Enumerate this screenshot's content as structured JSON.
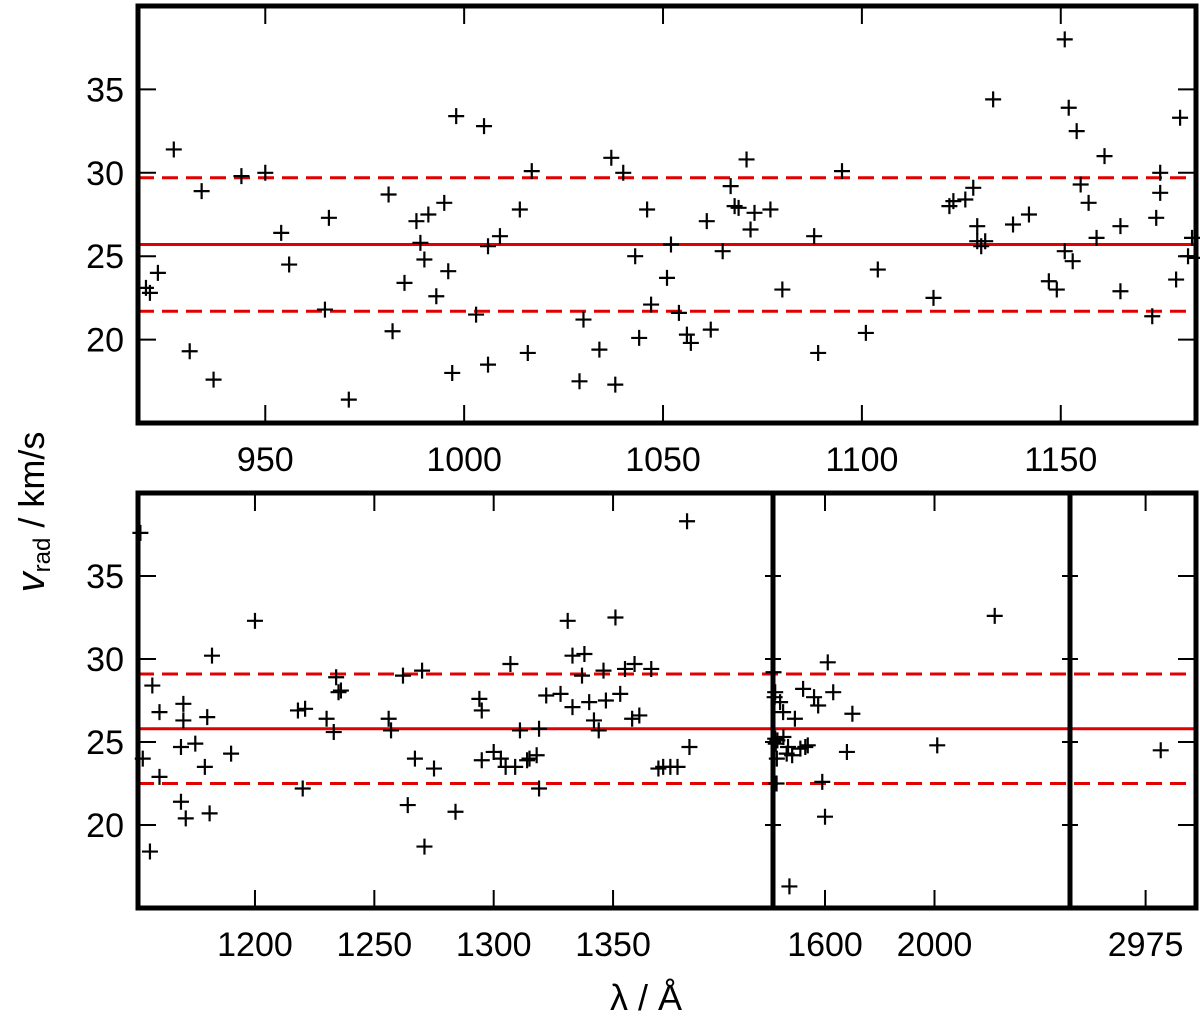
{
  "colors": {
    "line": "#e00000",
    "marker": "#000000",
    "axis": "#000000"
  },
  "chart_data": [
    {
      "type": "scatter",
      "panel": "top",
      "title": "",
      "xlabel": "",
      "ylabel": "v_rad / km/s",
      "ylabel_parts": {
        "symbol": "v",
        "subscript": "rad",
        "unit": " / km/s"
      },
      "xlim": [
        918,
        1184
      ],
      "ylim": [
        15,
        40
      ],
      "xticks": [
        950,
        1000,
        1050,
        1100,
        1150
      ],
      "yticks": [
        20,
        25,
        30,
        35
      ],
      "mean": 25.7,
      "band": [
        21.7,
        29.7
      ],
      "points": [
        [
          920,
          23.1
        ],
        [
          921,
          22.8
        ],
        [
          923,
          24.0
        ],
        [
          927,
          31.4
        ],
        [
          931,
          19.3
        ],
        [
          934,
          28.9
        ],
        [
          937,
          17.6
        ],
        [
          944,
          29.8
        ],
        [
          950,
          30.0
        ],
        [
          954,
          26.4
        ],
        [
          956,
          24.5
        ],
        [
          965,
          21.8
        ],
        [
          966,
          27.3
        ],
        [
          971,
          16.4
        ],
        [
          981,
          28.7
        ],
        [
          982,
          20.5
        ],
        [
          985,
          23.4
        ],
        [
          988,
          27.1
        ],
        [
          989,
          25.8
        ],
        [
          990,
          24.8
        ],
        [
          991,
          27.5
        ],
        [
          993,
          22.6
        ],
        [
          995,
          28.2
        ],
        [
          996,
          24.1
        ],
        [
          997,
          18.0
        ],
        [
          998,
          33.4
        ],
        [
          1003,
          21.5
        ],
        [
          1005,
          32.8
        ],
        [
          1006,
          18.5
        ],
        [
          1006,
          25.6
        ],
        [
          1009,
          26.2
        ],
        [
          1014,
          27.8
        ],
        [
          1016,
          19.2
        ],
        [
          1017,
          30.1
        ],
        [
          1029,
          17.5
        ],
        [
          1030,
          21.2
        ],
        [
          1034,
          19.4
        ],
        [
          1037,
          30.9
        ],
        [
          1038,
          17.3
        ],
        [
          1040,
          30.0
        ],
        [
          1043,
          25.0
        ],
        [
          1044,
          20.1
        ],
        [
          1046,
          27.8
        ],
        [
          1047,
          22.1
        ],
        [
          1051,
          23.7
        ],
        [
          1052,
          25.7
        ],
        [
          1054,
          21.6
        ],
        [
          1056,
          20.3
        ],
        [
          1057,
          19.8
        ],
        [
          1061,
          27.1
        ],
        [
          1062,
          20.6
        ],
        [
          1065,
          25.3
        ],
        [
          1067,
          29.2
        ],
        [
          1068,
          28.0
        ],
        [
          1069,
          27.9
        ],
        [
          1071,
          30.8
        ],
        [
          1072,
          26.6
        ],
        [
          1073,
          27.6
        ],
        [
          1077,
          27.8
        ],
        [
          1080,
          23.0
        ],
        [
          1088,
          26.2
        ],
        [
          1089,
          19.2
        ],
        [
          1095,
          30.1
        ],
        [
          1101,
          20.4
        ],
        [
          1104,
          24.2
        ],
        [
          1118,
          22.5
        ],
        [
          1122,
          28.0
        ],
        [
          1123,
          28.3
        ],
        [
          1126,
          28.4
        ],
        [
          1128,
          29.1
        ],
        [
          1129,
          26.8
        ],
        [
          1129,
          25.9
        ],
        [
          1130,
          25.6
        ],
        [
          1131,
          25.9
        ],
        [
          1133,
          34.4
        ],
        [
          1138,
          26.9
        ],
        [
          1142,
          27.5
        ],
        [
          1147,
          23.5
        ],
        [
          1149,
          23.0
        ],
        [
          1151,
          38.0
        ],
        [
          1151,
          25.3
        ],
        [
          1152,
          33.9
        ],
        [
          1153,
          24.7
        ],
        [
          1154,
          32.5
        ],
        [
          1155,
          29.3
        ],
        [
          1157,
          28.2
        ],
        [
          1159,
          26.1
        ],
        [
          1161,
          31.0
        ],
        [
          1165,
          26.8
        ],
        [
          1165,
          22.9
        ],
        [
          1173,
          21.4
        ],
        [
          1174,
          27.3
        ],
        [
          1175,
          30.0
        ],
        [
          1175,
          28.8
        ],
        [
          1179,
          23.6
        ],
        [
          1180,
          33.3
        ],
        [
          1182,
          25.0
        ],
        [
          1183,
          26.1
        ],
        [
          1184,
          24.9
        ]
      ]
    },
    {
      "type": "scatter",
      "panel": "bottom",
      "title": "",
      "xlabel": "λ / Å",
      "ylabel": "",
      "ylim": [
        15,
        40
      ],
      "mean": 25.8,
      "band": [
        22.5,
        29.1
      ],
      "segments": [
        {
          "xlim": [
            1151,
            1417
          ],
          "xticks": [
            1200,
            1250,
            1300,
            1350
          ],
          "points": [
            [
              1152,
              37.6
            ],
            [
              1153,
              24.0
            ],
            [
              1156,
              18.4
            ],
            [
              1157,
              28.4
            ],
            [
              1160,
              22.9
            ],
            [
              1160,
              26.8
            ],
            [
              1169,
              21.4
            ],
            [
              1169,
              24.7
            ],
            [
              1170,
              27.3
            ],
            [
              1170,
              26.3
            ],
            [
              1171,
              20.4
            ],
            [
              1175,
              24.9
            ],
            [
              1179,
              23.5
            ],
            [
              1180,
              26.5
            ],
            [
              1181,
              20.7
            ],
            [
              1182,
              30.2
            ],
            [
              1190,
              24.3
            ],
            [
              1200,
              32.3
            ],
            [
              1218,
              26.9
            ],
            [
              1220,
              22.2
            ],
            [
              1221,
              27.0
            ],
            [
              1230,
              26.4
            ],
            [
              1233,
              25.6
            ],
            [
              1234,
              28.9
            ],
            [
              1235,
              28.0
            ],
            [
              1236,
              28.1
            ],
            [
              1256,
              26.4
            ],
            [
              1257,
              25.7
            ],
            [
              1262,
              29.0
            ],
            [
              1264,
              21.2
            ],
            [
              1267,
              24.0
            ],
            [
              1270,
              29.3
            ],
            [
              1271,
              18.7
            ],
            [
              1275,
              23.4
            ],
            [
              1284,
              20.8
            ],
            [
              1294,
              27.6
            ],
            [
              1295,
              23.9
            ],
            [
              1295,
              26.9
            ],
            [
              1300,
              24.4
            ],
            [
              1303,
              24.0
            ],
            [
              1305,
              23.5
            ],
            [
              1307,
              29.7
            ],
            [
              1309,
              23.5
            ],
            [
              1311,
              25.7
            ],
            [
              1314,
              23.9
            ],
            [
              1315,
              24.0
            ],
            [
              1318,
              24.2
            ],
            [
              1319,
              22.2
            ],
            [
              1319,
              25.8
            ],
            [
              1322,
              27.8
            ],
            [
              1328,
              27.9
            ],
            [
              1331,
              32.3
            ],
            [
              1333,
              30.2
            ],
            [
              1333,
              27.1
            ],
            [
              1337,
              29.0
            ],
            [
              1338,
              30.3
            ],
            [
              1340,
              27.4
            ],
            [
              1342,
              26.3
            ],
            [
              1344,
              25.7
            ],
            [
              1346,
              29.3
            ],
            [
              1347,
              27.5
            ],
            [
              1351,
              32.5
            ],
            [
              1353,
              27.9
            ],
            [
              1355,
              29.4
            ],
            [
              1358,
              26.4
            ],
            [
              1359,
              29.7
            ],
            [
              1361,
              26.6
            ],
            [
              1366,
              29.4
            ],
            [
              1369,
              23.4
            ],
            [
              1371,
              23.5
            ],
            [
              1374,
              23.5
            ],
            [
              1377,
              23.5
            ],
            [
              1381,
              38.3
            ],
            [
              1382,
              24.7
            ]
          ]
        },
        {
          "xlim": [
            1410,
            2495
          ],
          "xticks": [
            1600,
            2000
          ],
          "points": [
            [
              1412,
              29.2
            ],
            [
              1416,
              27.7
            ],
            [
              1418,
              28.0
            ],
            [
              1418,
              25.2
            ],
            [
              1420,
              24.9
            ],
            [
              1423,
              22.5
            ],
            [
              1424,
              24.0
            ],
            [
              1426,
              25.1
            ],
            [
              1436,
              27.4
            ],
            [
              1447,
              26.8
            ],
            [
              1448,
              25.3
            ],
            [
              1460,
              24.3
            ],
            [
              1465,
              24.7
            ],
            [
              1470,
              16.3
            ],
            [
              1480,
              24.2
            ],
            [
              1490,
              26.4
            ],
            [
              1510,
              24.6
            ],
            [
              1520,
              28.2
            ],
            [
              1528,
              24.7
            ],
            [
              1537,
              24.8
            ],
            [
              1560,
              27.7
            ],
            [
              1575,
              27.2
            ],
            [
              1590,
              22.6
            ],
            [
              1600,
              20.5
            ],
            [
              1610,
              29.8
            ],
            [
              1630,
              28.0
            ],
            [
              1680,
              24.4
            ],
            [
              1700,
              26.7
            ],
            [
              2010,
              24.8
            ],
            [
              2220,
              32.6
            ]
          ]
        },
        {
          "xlim": [
            2900,
            3025
          ],
          "xticks": [
            2975
          ],
          "points": [
            [
              2990,
              24.5
            ]
          ]
        }
      ]
    }
  ]
}
